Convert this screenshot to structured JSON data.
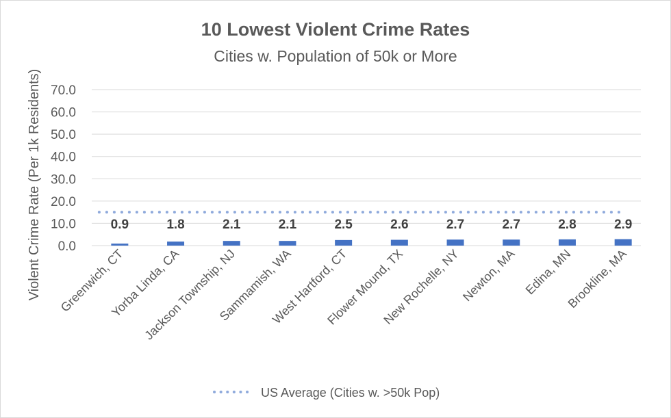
{
  "chart_data": {
    "type": "bar",
    "title": "10 Lowest Violent Crime Rates",
    "subtitle": "Cities w. Population of 50k or More",
    "xlabel": "",
    "ylabel": "Violent Crime Rate (Per 1k Residents)",
    "ylim": [
      0,
      70
    ],
    "yticks": [
      "0.0",
      "10.0",
      "20.0",
      "30.0",
      "40.0",
      "50.0",
      "60.0",
      "70.0"
    ],
    "grid": true,
    "legend_position": "bottom",
    "categories": [
      "Greenwich, CT",
      "Yorba Linda, CA",
      "Jackson Township, NJ",
      "Sammamish, WA",
      "West Hartford, CT",
      "Flower Mound, TX",
      "New Rochelle, NY",
      "Newton, MA",
      "Edina, MN",
      "Brookline, MA"
    ],
    "values": [
      0.9,
      1.8,
      2.1,
      2.1,
      2.5,
      2.6,
      2.7,
      2.7,
      2.8,
      2.9
    ],
    "data_labels": [
      "0.9",
      "1.8",
      "2.1",
      "2.1",
      "2.5",
      "2.6",
      "2.7",
      "2.7",
      "2.8",
      "2.9"
    ],
    "reference_line": {
      "name": "US Average (Cities w. >50k Pop)",
      "value": 15.0,
      "style": "dotted"
    },
    "colors": {
      "bar": "#4472C4",
      "reference": "#8FAADC",
      "text": "#595959",
      "label": "#404040",
      "grid": "#D9D9D9"
    }
  }
}
